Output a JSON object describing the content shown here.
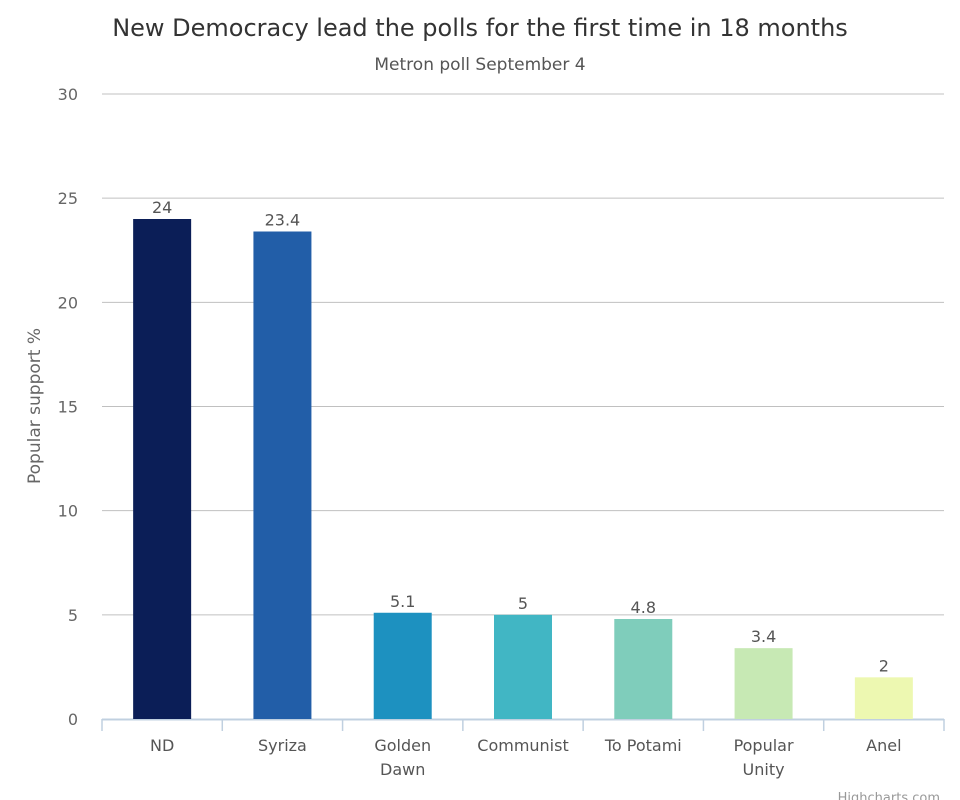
{
  "chart_data": {
    "type": "bar",
    "title": "New Democracy lead the polls for the first time in 18 months",
    "subtitle": "Metron poll September 4",
    "xlabel": "",
    "ylabel": "Popular support %",
    "ylim": [
      0,
      30
    ],
    "yticks": [
      "0",
      "5",
      "10",
      "15",
      "20",
      "25",
      "30"
    ],
    "categories": [
      [
        "ND"
      ],
      [
        "Syriza"
      ],
      [
        "Golden",
        "Dawn"
      ],
      [
        "Communist"
      ],
      [
        "To Potami"
      ],
      [
        "Popular",
        "Unity"
      ],
      [
        "Anel"
      ]
    ],
    "values": [
      24,
      23.4,
      5.1,
      5,
      4.8,
      3.4,
      2
    ],
    "colors": [
      "#0b1e57",
      "#225ea8",
      "#1d91c0",
      "#41b6c4",
      "#7fcdbb",
      "#c7e9b4",
      "#edf8b1"
    ],
    "grid": true,
    "legend": "none",
    "credits": "Highcharts.com"
  }
}
